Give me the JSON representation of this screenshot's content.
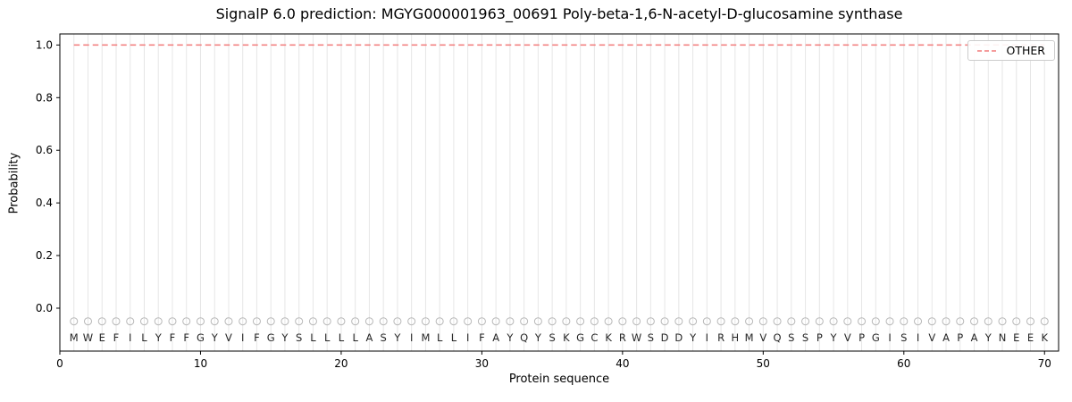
{
  "title": "SignalP 6.0 prediction: MGYG000001963_00691 Poly-beta-1,6-N-acetyl-D-glucosamine synthase",
  "xlabel": "Protein sequence",
  "ylabel": "Probability",
  "legend": {
    "other_label": "OTHER",
    "position": "upper right"
  },
  "colors": {
    "other_line": "#f27a7a",
    "grid": "#e6e6e6",
    "marker": "#b8b8b8",
    "axis": "#000000",
    "letter": "#262626"
  },
  "chart_data": {
    "type": "line",
    "title": "SignalP 6.0 prediction: MGYG000001963_00691 Poly-beta-1,6-N-acetyl-D-glucosamine synthase",
    "xlabel": "Protein sequence",
    "ylabel": "Probability",
    "xlim": [
      0,
      71
    ],
    "ylim": [
      -0.163,
      1.042
    ],
    "xticks": [
      0,
      10,
      20,
      30,
      40,
      50,
      60,
      70
    ],
    "yticks": [
      0.0,
      0.2,
      0.4,
      0.6,
      0.8,
      1.0
    ],
    "grid": "vertical gridline at every residue position",
    "legend_position": "upper right",
    "sequence": "MWEFILYFFGYVIFGYSLLLLASYIMLLIFAYQYSKGCKRWSDDYIRHMVQSSPYVPGISIVAPAYNEEK",
    "residue_marker": {
      "shape": "open-circle",
      "y": -0.05
    },
    "series": [
      {
        "name": "OTHER",
        "line_style": "dashed",
        "color": "#f27a7a",
        "x": [
          1,
          2,
          3,
          4,
          5,
          6,
          7,
          8,
          9,
          10,
          11,
          12,
          13,
          14,
          15,
          16,
          17,
          18,
          19,
          20,
          21,
          22,
          23,
          24,
          25,
          26,
          27,
          28,
          29,
          30,
          31,
          32,
          33,
          34,
          35,
          36,
          37,
          38,
          39,
          40,
          41,
          42,
          43,
          44,
          45,
          46,
          47,
          48,
          49,
          50,
          51,
          52,
          53,
          54,
          55,
          56,
          57,
          58,
          59,
          60,
          61,
          62,
          63,
          64,
          65,
          66,
          67,
          68,
          69,
          70
        ],
        "values": [
          1.0,
          1.0,
          1.0,
          1.0,
          1.0,
          1.0,
          1.0,
          1.0,
          1.0,
          1.0,
          1.0,
          1.0,
          1.0,
          1.0,
          1.0,
          1.0,
          1.0,
          1.0,
          1.0,
          1.0,
          1.0,
          1.0,
          1.0,
          1.0,
          1.0,
          1.0,
          1.0,
          1.0,
          1.0,
          1.0,
          1.0,
          1.0,
          1.0,
          1.0,
          1.0,
          1.0,
          1.0,
          1.0,
          1.0,
          1.0,
          1.0,
          1.0,
          1.0,
          1.0,
          1.0,
          1.0,
          1.0,
          1.0,
          1.0,
          1.0,
          1.0,
          1.0,
          1.0,
          1.0,
          1.0,
          1.0,
          1.0,
          1.0,
          1.0,
          1.0,
          1.0,
          1.0,
          1.0,
          1.0,
          1.0,
          1.0,
          1.0,
          1.0,
          1.0,
          1.0
        ]
      }
    ]
  }
}
